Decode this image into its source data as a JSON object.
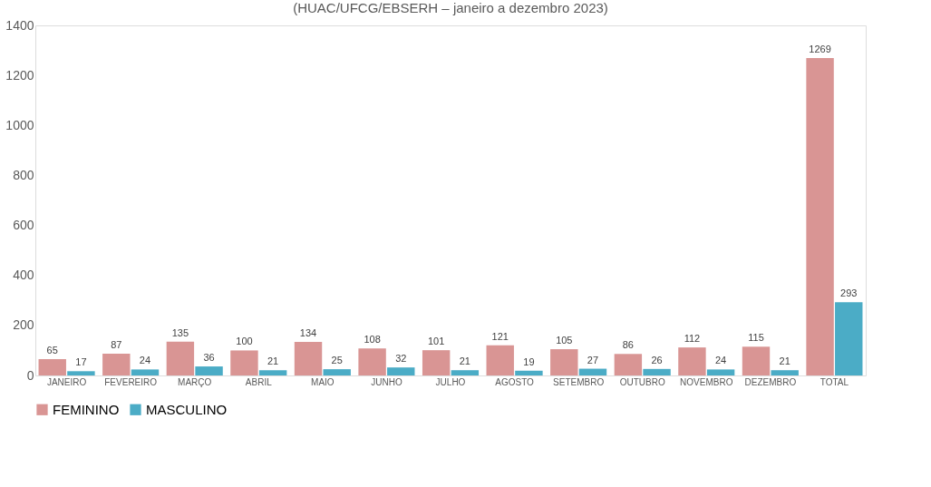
{
  "chart_data": {
    "type": "bar",
    "subtitle": "(HUAC/UFCG/EBSERH – janeiro a dezembro 2023)",
    "categories": [
      "JANEIRO",
      "FEVEREIRO",
      "MARÇO",
      "ABRIL",
      "MAIO",
      "JUNHO",
      "JULHO",
      "AGOSTO",
      "SETEMBRO",
      "OUTUBRO",
      "NOVEMBRO",
      "DEZEMBRO",
      "TOTAL"
    ],
    "series": [
      {
        "name": "FEMININO",
        "color": "#d99594",
        "values": [
          65,
          87,
          135,
          100,
          134,
          108,
          101,
          121,
          105,
          86,
          112,
          115,
          1269
        ]
      },
      {
        "name": "MASCULINO",
        "color": "#4bacc6",
        "values": [
          17,
          24,
          36,
          21,
          25,
          32,
          21,
          19,
          27,
          26,
          24,
          21,
          293
        ]
      }
    ],
    "ylim": [
      0,
      1400
    ],
    "yticks": [
      0,
      200,
      400,
      600,
      800,
      1000,
      1200,
      1400
    ],
    "grid": false,
    "legend": "bottom",
    "data_labels": true
  }
}
